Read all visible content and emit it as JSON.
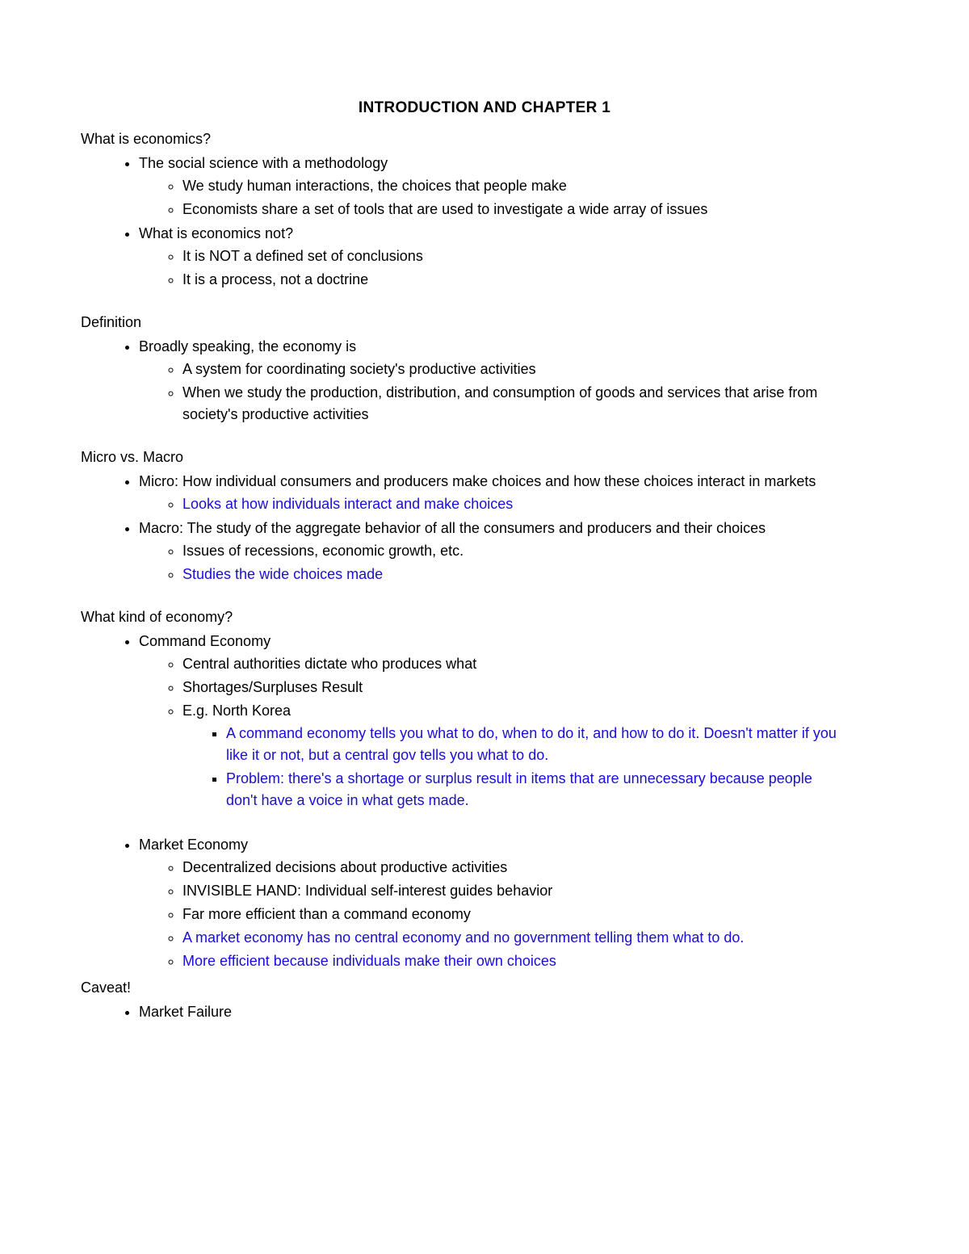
{
  "colors": {
    "text": "#000000",
    "link_blue": "#1a0dd6",
    "background": "#ffffff"
  },
  "typography": {
    "body_fontsize": 18,
    "title_fontsize": 19,
    "font_family": "Arial"
  },
  "title": "INTRODUCTION AND CHAPTER 1",
  "sections": {
    "what_is_economics": {
      "heading": "What is economics?",
      "items": [
        {
          "text": "The social science with a methodology",
          "sub": [
            {
              "text": "We study human interactions, the choices that people make"
            },
            {
              "text": "Economists share a set of tools that are used to investigate a wide array of issues"
            }
          ]
        },
        {
          "text": "What is economics not?",
          "sub": [
            {
              "text": "It is NOT a defined set of conclusions"
            },
            {
              "text": "It is a process, not a doctrine"
            }
          ]
        }
      ]
    },
    "definition": {
      "heading": "Definition",
      "items": [
        {
          "text": "Broadly speaking, the economy is",
          "sub": [
            {
              "text": "A system for coordinating society's productive activities"
            },
            {
              "text": "When we study the production, distribution, and consumption of goods and services that arise from society's productive activities"
            }
          ]
        }
      ]
    },
    "micro_macro": {
      "heading": "Micro vs. Macro",
      "items": [
        {
          "text": "Micro: How individual consumers and producers make choices and how these choices interact in markets",
          "sub": [
            {
              "text": "Looks at how individuals interact and make choices",
              "blue": true
            }
          ]
        },
        {
          "text": "Macro: The study of the aggregate behavior of all the consumers and producers and their choices",
          "sub": [
            {
              "text": "Issues of recessions, economic growth, etc."
            },
            {
              "text": "Studies the wide choices made",
              "blue": true
            }
          ]
        }
      ]
    },
    "what_kind": {
      "heading": "What kind of economy?",
      "items": [
        {
          "text": "Command Economy",
          "sub": [
            {
              "text": "Central authorities dictate who produces what"
            },
            {
              "text": "Shortages/Surpluses Result"
            },
            {
              "text": "E.g. North Korea",
              "sub": [
                {
                  "text": "A command economy tells you what to do, when to do it, and how to do it. Doesn't matter if you like it or not, but a central gov tells you what to do.",
                  "blue": true
                },
                {
                  "text": "Problem: there's a shortage or surplus result in items that are unnecessary because people don't have a voice in what gets made.",
                  "blue": true
                }
              ]
            }
          ],
          "spacer_after": true
        },
        {
          "text": "Market Economy",
          "sub": [
            {
              "text": "Decentralized decisions about productive activities"
            },
            {
              "text": "INVISIBLE HAND: Individual self-interest guides behavior"
            },
            {
              "text": "Far more efficient than a command economy"
            },
            {
              "text": "A market economy has no central economy and no government telling them what to do.",
              "blue": true
            },
            {
              "text": "More efficient because individuals make their own choices",
              "blue": true
            }
          ]
        }
      ]
    },
    "caveat": {
      "heading": "Caveat!",
      "no_margin_top": true,
      "items": [
        {
          "text": "Market Failure"
        }
      ]
    }
  },
  "section_order": [
    "what_is_economics",
    "definition",
    "micro_macro",
    "what_kind",
    "caveat"
  ]
}
